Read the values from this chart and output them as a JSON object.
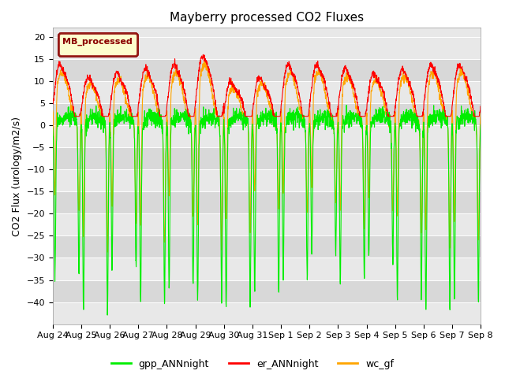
{
  "title": "Mayberry processed CO2 Fluxes",
  "ylabel": "CO2 Flux (urology/m2/s)",
  "ylim": [
    -45,
    22
  ],
  "yticks": [
    -40,
    -35,
    -30,
    -25,
    -20,
    -15,
    -10,
    -5,
    0,
    5,
    10,
    15,
    20
  ],
  "xlabel_dates": [
    "Aug 24",
    "Aug 25",
    "Aug 26",
    "Aug 27",
    "Aug 28",
    "Aug 29",
    "Aug 30",
    "Aug 31",
    "Sep 1",
    "Sep 2",
    "Sep 3",
    "Sep 4",
    "Sep 5",
    "Sep 6",
    "Sep 7",
    "Sep 8"
  ],
  "n_days": 15,
  "pts_per_day": 144,
  "legend_label": "MB_processed",
  "color_gpp": "#00ee00",
  "color_er": "#ff0000",
  "color_wc": "#ffa500",
  "legend_entries": [
    "gpp_ANNnight",
    "er_ANNnight",
    "wc_gf"
  ],
  "band_colors": [
    "#d8d8d8",
    "#e8e8e8"
  ],
  "title_fontsize": 11,
  "tick_fontsize": 8,
  "ylabel_fontsize": 9,
  "linewidth": 0.8,
  "mb_box_facecolor": "#ffffcc",
  "mb_box_edgecolor": "#8b0000",
  "mb_text_color": "#8b0000"
}
